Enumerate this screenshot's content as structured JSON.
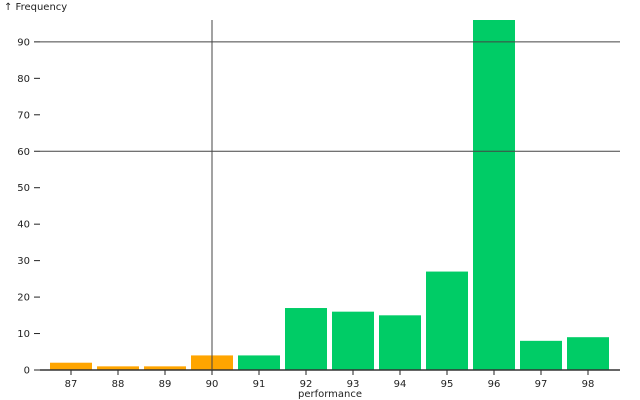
{
  "chart_data": {
    "type": "bar",
    "ylabel": "↑ Frequency",
    "xlabel": "performance",
    "categories": [
      "87",
      "88",
      "89",
      "90",
      "91",
      "92",
      "93",
      "94",
      "95",
      "96",
      "97",
      "98"
    ],
    "values": [
      2,
      1,
      1,
      4,
      4,
      17,
      16,
      15,
      27,
      96,
      8,
      9
    ],
    "bar_colors": [
      "#ffa500",
      "#ffa500",
      "#ffa500",
      "#ffa500",
      "#00cc66",
      "#00cc66",
      "#00cc66",
      "#00cc66",
      "#00cc66",
      "#00cc66",
      "#00cc66",
      "#00cc66"
    ],
    "yticks": [
      0,
      10,
      20,
      30,
      40,
      50,
      60,
      70,
      80,
      90
    ],
    "ylim": [
      0,
      96
    ],
    "reference_lines": {
      "y": [
        90,
        60
      ],
      "x": "90"
    },
    "grid": false
  }
}
